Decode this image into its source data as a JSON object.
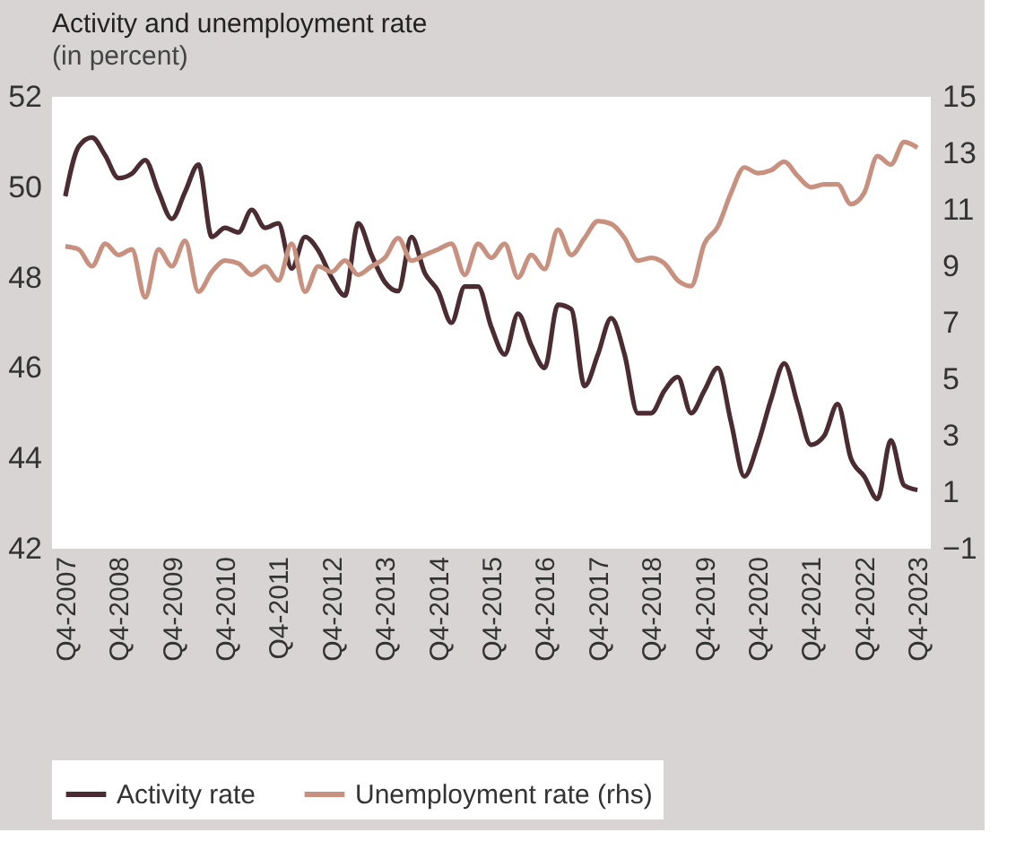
{
  "chart_data": {
    "type": "line",
    "title": "Activity and unemployment rate",
    "subtitle": "(in percent)",
    "categories": [
      "Q4-2007",
      null,
      null,
      null,
      "Q4-2008",
      null,
      null,
      null,
      "Q4-2009",
      null,
      null,
      null,
      "Q4-2010",
      null,
      null,
      null,
      "Q4-2011",
      null,
      null,
      null,
      "Q4-2012",
      null,
      null,
      null,
      "Q4-2013",
      null,
      null,
      null,
      "Q4-2014",
      null,
      null,
      null,
      "Q4-2015",
      null,
      null,
      null,
      "Q4-2016",
      null,
      null,
      null,
      "Q4-2017",
      null,
      null,
      null,
      "Q4-2018",
      null,
      null,
      null,
      "Q4-2019",
      null,
      null,
      null,
      "Q4-2020",
      null,
      null,
      null,
      "Q4-2021",
      null,
      null,
      null,
      "Q4-2022",
      null,
      null,
      null,
      "Q4-2023"
    ],
    "series": [
      {
        "name": "Activity rate",
        "color": "#4a2c32",
        "values": [
          49.8,
          50.9,
          51.1,
          50.7,
          50.2,
          50.3,
          50.6,
          49.9,
          49.3,
          49.9,
          50.5,
          48.9,
          49.1,
          49.0,
          49.5,
          49.1,
          49.2,
          48.2,
          48.9,
          48.6,
          48.0,
          47.6,
          49.2,
          48.5,
          47.9,
          47.7,
          48.9,
          48.1,
          47.7,
          47.0,
          47.8,
          47.8,
          46.9,
          46.3,
          47.2,
          46.5,
          46.0,
          47.4,
          47.3,
          45.6,
          46.3,
          47.1,
          46.3,
          45.0,
          45.0,
          45.5,
          45.8,
          45.0,
          45.5,
          46.0,
          44.8,
          43.6,
          44.3,
          45.3,
          46.1,
          45.2,
          44.3,
          44.5,
          45.2,
          44.0,
          43.6,
          43.1,
          44.4,
          43.4,
          43.3
        ]
      },
      {
        "name": "Unemployment rate (rhs)",
        "color": "#c8907e",
        "axis": "y2",
        "values": [
          9.7,
          9.6,
          9.0,
          9.8,
          9.4,
          9.6,
          7.9,
          9.6,
          9.0,
          9.9,
          8.1,
          8.8,
          9.2,
          9.1,
          8.7,
          9.0,
          8.5,
          9.8,
          8.1,
          9.0,
          8.8,
          9.2,
          8.7,
          9.0,
          9.3,
          10.0,
          9.2,
          9.4,
          9.6,
          9.8,
          8.7,
          9.8,
          9.3,
          9.8,
          8.6,
          9.4,
          8.9,
          10.3,
          9.4,
          10.0,
          10.6,
          10.5,
          10.0,
          9.2,
          9.3,
          9.1,
          8.5,
          8.3,
          9.8,
          10.4,
          11.6,
          12.5,
          12.3,
          12.4,
          12.7,
          12.2,
          11.8,
          11.9,
          11.9,
          11.2,
          11.6,
          12.9,
          12.6,
          13.4,
          13.2
        ]
      }
    ],
    "ylim": [
      42,
      52
    ],
    "yticks": [
      42,
      44,
      46,
      48,
      50,
      52
    ],
    "y2lim": [
      -1,
      15
    ],
    "y2ticks": [
      -1,
      1,
      3,
      5,
      7,
      9,
      11,
      13,
      15
    ],
    "grid": false,
    "legend": "bottom",
    "line_style": "solid",
    "marker": "none"
  }
}
